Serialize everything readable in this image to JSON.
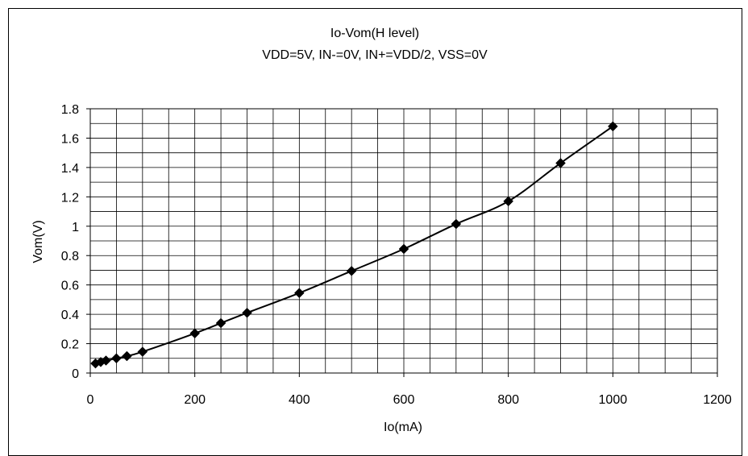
{
  "chart_data": {
    "type": "line",
    "title": "Io-Vom(H level)",
    "subtitle": "VDD=5V, IN-=0V, IN+=VDD/2, VSS=0V",
    "xlabel": "Io(mA)",
    "ylabel": "Vom(V)",
    "xlim": [
      0,
      1200
    ],
    "ylim": [
      0,
      1.8
    ],
    "x_ticks": [
      "0",
      "200",
      "400",
      "600",
      "800",
      "1000",
      "1200"
    ],
    "y_ticks": [
      "0",
      "0.2",
      "0.4",
      "0.6",
      "0.8",
      "1",
      "1.2",
      "1.4",
      "1.6",
      "1.8"
    ],
    "grid": true,
    "legend": "none",
    "series": [
      {
        "marker": "diamond",
        "color": "#000000",
        "points": [
          {
            "x": 10,
            "y": 0.065
          },
          {
            "x": 20,
            "y": 0.075
          },
          {
            "x": 30,
            "y": 0.085
          },
          {
            "x": 50,
            "y": 0.1
          },
          {
            "x": 70,
            "y": 0.115
          },
          {
            "x": 100,
            "y": 0.145
          },
          {
            "x": 200,
            "y": 0.27
          },
          {
            "x": 250,
            "y": 0.34
          },
          {
            "x": 300,
            "y": 0.41
          },
          {
            "x": 400,
            "y": 0.545
          },
          {
            "x": 500,
            "y": 0.695
          },
          {
            "x": 600,
            "y": 0.845
          },
          {
            "x": 700,
            "y": 1.015
          },
          {
            "x": 800,
            "y": 1.17
          },
          {
            "x": 900,
            "y": 1.43
          },
          {
            "x": 1000,
            "y": 1.68
          }
        ]
      }
    ]
  }
}
